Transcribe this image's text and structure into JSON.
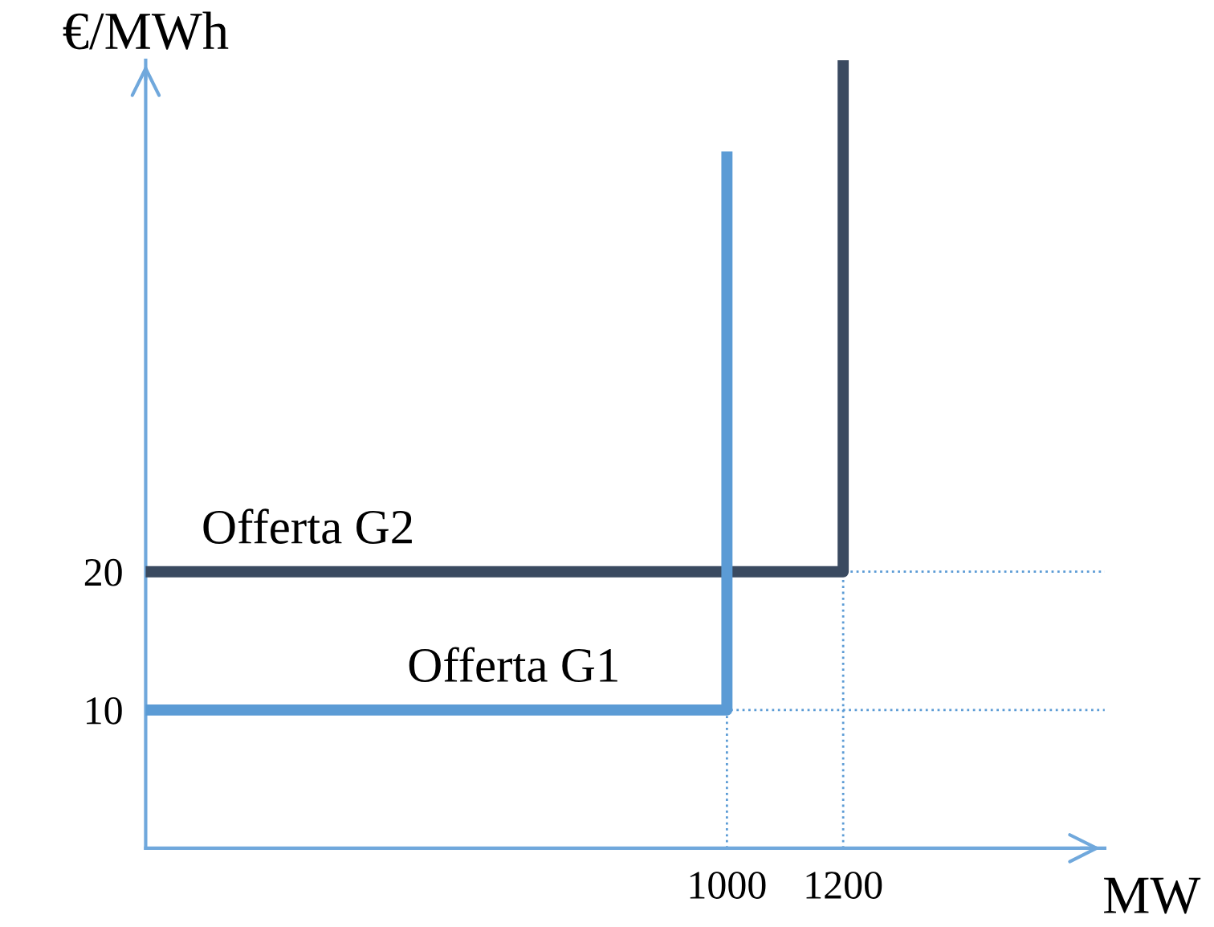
{
  "chart_data": {
    "type": "line",
    "xlabel": "MW",
    "ylabel": "€/MWh",
    "xlim": [
      0,
      1650
    ],
    "ylim": [
      0,
      57
    ],
    "xticks": [
      1000,
      1200
    ],
    "yticks": [
      10,
      20
    ],
    "grid": false,
    "legend": false,
    "marker": "none",
    "series": [
      {
        "name": "Offerta G2",
        "color": "#3a4a60",
        "x": [
          0,
          1200,
          1200
        ],
        "values": [
          20,
          20,
          57
        ],
        "line_style": "solid"
      },
      {
        "name": "Offerta G1",
        "color": "#5b9bd5",
        "x": [
          0,
          1000,
          1000
        ],
        "values": [
          10,
          10,
          50
        ],
        "line_style": "solid"
      },
      {
        "color": "#5b9bd5",
        "x": [
          1000,
          1000,
          1650
        ],
        "values": [
          0,
          10,
          10
        ],
        "line_style": "dotted"
      },
      {
        "color": "#5b9bd5",
        "x": [
          1200,
          1200,
          1650
        ],
        "values": [
          0,
          20,
          20
        ],
        "line_style": "dotted"
      }
    ]
  }
}
